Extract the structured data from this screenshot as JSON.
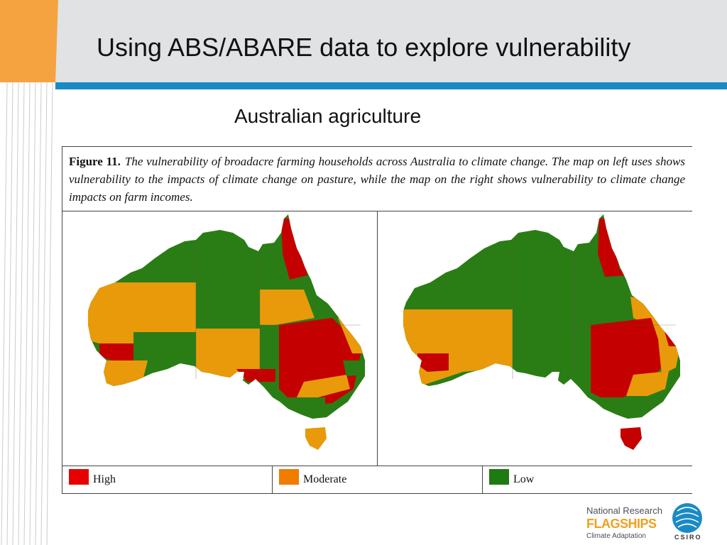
{
  "slide": {
    "title": "Using ABS/ABARE data to explore vulnerability",
    "subtitle": "Australian agriculture"
  },
  "figure": {
    "label": "Figure 11.",
    "caption": "The vulnerability of broadacre farming households across Australia to climate change. The map on left uses shows vulnerability to the impacts of climate change on pasture, while the map on the right shows vulnerability to climate change impacts on farm incomes."
  },
  "colors": {
    "high": "#c40000",
    "moderate": "#e89a0a",
    "low": "#2a7d14",
    "accent_blue": "#1a8ac5",
    "accent_orange": "#f4a340",
    "legend_high": "#e60000",
    "legend_moderate": "#f07c00",
    "legend_low": "#1e7a12"
  },
  "legend": [
    {
      "label": "High",
      "color": "#e60000"
    },
    {
      "label": "Moderate",
      "color": "#f07c00"
    },
    {
      "label": "Low",
      "color": "#1e7a12"
    }
  ],
  "logo": {
    "line1": "National Research",
    "line2": "FLAGSHIPS",
    "line3": "Climate Adaptation",
    "org": "CSIRO"
  }
}
